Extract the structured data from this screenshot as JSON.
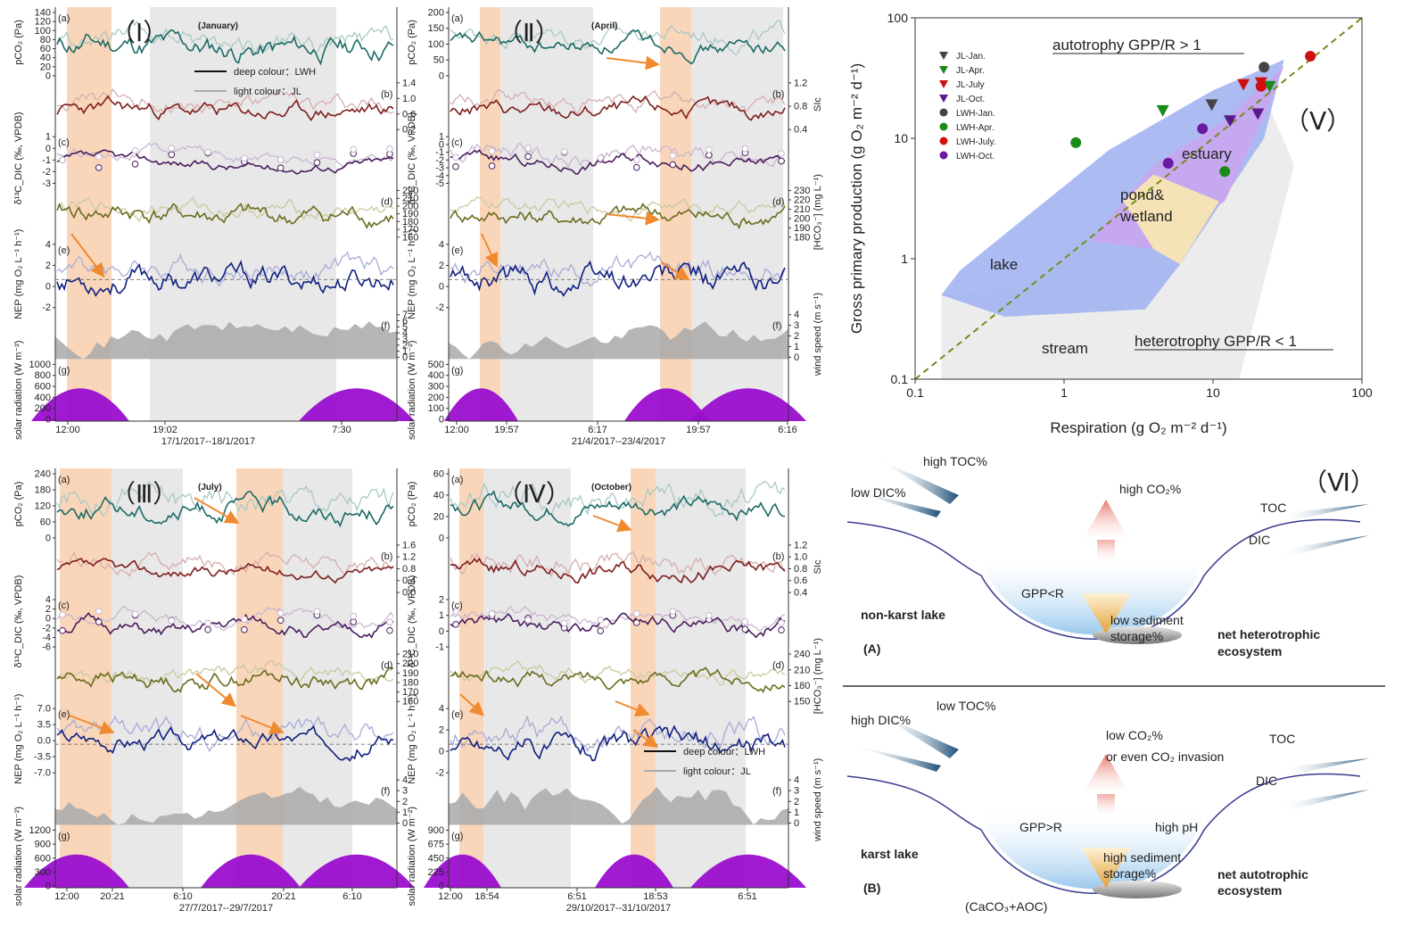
{
  "colors": {
    "day_shade": "#f8cfae",
    "night_shade": "#e8e8e8",
    "pco2_deep": "#1a6a66",
    "pco2_light": "#a9c9c4",
    "sic_deep": "#7e1d1d",
    "sic_light": "#d6aeb0",
    "d13c_deep": "#4a1e5e",
    "d13c_light": "#c9b6d0",
    "hco3_deep": "#6b6b1e",
    "hco3_light": "#c9c9a0",
    "nep_deep": "#0f1f80",
    "nep_light": "#a9abd6",
    "wind": "#a9a9a9",
    "solar": "#9a0ecf",
    "arrow": "#ef8a2f",
    "lake_region": "#a3b5f2",
    "estuary_region": "#c8a6ee",
    "pond_region": "#f5e3b7",
    "stream_region": "#ececec",
    "ratio_line": "#7a8a1a"
  },
  "panels": [
    {
      "roman": "（Ⅰ）",
      "month": "(January)",
      "date_range": "17/1/2017--18/1/2017",
      "time_ticks": [
        "12:00",
        "19:02",
        "7:30"
      ],
      "subplot_letters": [
        "(a)",
        "(b)",
        "(c)",
        "(d)",
        "(e)",
        "(f)",
        "(g)"
      ],
      "pco2_ticks": [
        "140",
        "120",
        "100",
        "80",
        "60",
        "40",
        "20",
        "0"
      ],
      "sic_ticks": [
        "1.4",
        "1.0",
        "0.6",
        "0.2"
      ],
      "d13c_ticks": [
        "1",
        "0",
        "-1",
        "-2",
        "-3"
      ],
      "hco3_ticks": [
        "220",
        "210",
        "200",
        "190",
        "180",
        "170",
        "160"
      ],
      "nep_ticks": [
        "4",
        "2",
        "0",
        "-2"
      ],
      "wind_ticks": [
        "7",
        "6",
        "5",
        "4",
        "3",
        "2",
        "1",
        "0"
      ],
      "solar_ticks": [
        "1000",
        "800",
        "600",
        "400",
        "200",
        "0"
      ],
      "legend": [
        "deep colour：LWH",
        "light colour：JL"
      ]
    },
    {
      "roman": "（Ⅱ）",
      "month": "(April)",
      "date_range": "21/4/2017--23/4/2017",
      "time_ticks": [
        "12:00",
        "19:57",
        "6:17",
        "19:57",
        "6:16"
      ],
      "subplot_letters": [
        "(a)",
        "(b)",
        "(c)",
        "(d)",
        "(e)",
        "(f)",
        "(g)"
      ],
      "pco2_ticks": [
        "200",
        "150",
        "100",
        "50",
        "0"
      ],
      "sic_ticks": [
        "1.2",
        "0.8",
        "0.4"
      ],
      "d13c_ticks": [
        "1",
        "0",
        "-1",
        "-2",
        "-3",
        "-4",
        "-5"
      ],
      "hco3_ticks": [
        "230",
        "220",
        "210",
        "200",
        "190",
        "180"
      ],
      "nep_ticks": [
        "4",
        "2",
        "0",
        "-2"
      ],
      "wind_ticks": [
        "4",
        "3",
        "2",
        "1",
        "0"
      ],
      "solar_ticks": [
        "500",
        "400",
        "300",
        "200",
        "100",
        "0"
      ]
    },
    {
      "roman": "（Ⅲ）",
      "month": "(July)",
      "date_range": "27/7/2017--29/7/2017",
      "time_ticks": [
        "12:00",
        "20:21",
        "6:10",
        "20:21",
        "6:10"
      ],
      "subplot_letters": [
        "(a)",
        "(b)",
        "(c)",
        "(d)",
        "(e)",
        "(f)",
        "(g)"
      ],
      "pco2_ticks": [
        "240",
        "180",
        "120",
        "60",
        "0"
      ],
      "sic_ticks": [
        "1.6",
        "1.2",
        "0.8",
        "0.4",
        "0.0"
      ],
      "d13c_ticks": [
        "4",
        "2",
        "0",
        "-2",
        "-4",
        "-6"
      ],
      "hco3_ticks": [
        "210",
        "200",
        "190",
        "180",
        "170",
        "160"
      ],
      "nep_ticks": [
        "7.0",
        "3.5",
        "0.0",
        "-3.5",
        "-7.0"
      ],
      "wind_ticks": [
        "4",
        "3",
        "2",
        "1",
        "0"
      ],
      "solar_ticks": [
        "1200",
        "900",
        "600",
        "300",
        "0"
      ]
    },
    {
      "roman": "（Ⅳ）",
      "month": "(October)",
      "date_range": "29/10/2017--31/10/2017",
      "time_ticks": [
        "12:00",
        "18:54",
        "6:51",
        "18:53",
        "6:51"
      ],
      "subplot_letters": [
        "(a)",
        "(b)",
        "(c)",
        "(d)",
        "(e)",
        "(f)",
        "(g)"
      ],
      "pco2_ticks": [
        "60",
        "40",
        "20",
        "0"
      ],
      "sic_ticks": [
        "1.2",
        "1.0",
        "0.8",
        "0.6",
        "0.4"
      ],
      "d13c_ticks": [
        "2",
        "1",
        "0",
        "-1"
      ],
      "hco3_ticks": [
        "240",
        "210",
        "180",
        "150"
      ],
      "nep_ticks": [
        "4",
        "2",
        "0",
        "-2"
      ],
      "wind_ticks": [
        "4",
        "3",
        "2",
        "1",
        "0"
      ],
      "solar_ticks": [
        "900",
        "675",
        "450",
        "225",
        "0"
      ],
      "legend": [
        "deep colour：LWH",
        "light colour：JL"
      ]
    }
  ],
  "axis_labels": {
    "pco2": "pCO₂ (Pa)",
    "d13c": "δ¹³C_DIC (‰, VPDB)",
    "nep": "NEP (mg O₂ L⁻¹ h⁻¹)",
    "solar": "solar radiation (W m⁻²)",
    "sic": "SIc",
    "hco3": "[HCO₃⁻] (mg L⁻¹)",
    "wind": "wind speed (m s⁻¹)"
  },
  "chart_data": {
    "type": "scatter",
    "roman": "（Ⅴ）",
    "xlabel": "Respiration (g O₂ m⁻² d⁻¹)",
    "ylabel": "Gross primary production (g O₂ m⁻² d⁻¹)",
    "x_scale": "log",
    "y_scale": "log",
    "xlim": [
      0.1,
      100
    ],
    "ylim": [
      0.1,
      100
    ],
    "x_ticks": [
      "0.1",
      "1",
      "10",
      "100"
    ],
    "y_ticks": [
      "0.1",
      "1",
      "10",
      "100"
    ],
    "legend_position": "top-left",
    "annotations": [
      "autotrophy GPP/R > 1",
      "heterotrophy GPP/R < 1"
    ],
    "region_labels": [
      "lake",
      "estuary",
      "pond&",
      "wetland",
      "stream"
    ],
    "reference_line": "GPP/R = 1",
    "series": [
      {
        "name": "JL-Jan.",
        "marker": "triangle-down",
        "color": "#444444",
        "points": [
          [
            9.8,
            19
          ]
        ]
      },
      {
        "name": "JL-Apr.",
        "marker": "triangle-down",
        "color": "#1a8a1a",
        "points": [
          [
            4.6,
            17
          ],
          [
            24,
            27
          ]
        ]
      },
      {
        "name": "JL-July",
        "marker": "triangle-down",
        "color": "#d01010",
        "points": [
          [
            16,
            28
          ],
          [
            21,
            29
          ]
        ]
      },
      {
        "name": "JL-Oct.",
        "marker": "triangle-down",
        "color": "#5a1a8a",
        "points": [
          [
            13,
            14
          ],
          [
            20,
            16
          ]
        ]
      },
      {
        "name": "LWH-Jan.",
        "marker": "circle",
        "color": "#444444",
        "points": [
          [
            22,
            39
          ]
        ]
      },
      {
        "name": "LWH-Apr.",
        "marker": "circle",
        "color": "#1a8a1a",
        "points": [
          [
            1.2,
            9.2
          ],
          [
            12,
            5.3
          ]
        ]
      },
      {
        "name": "LWH-July.",
        "marker": "circle",
        "color": "#d01010",
        "points": [
          [
            21,
            27
          ],
          [
            45,
            48
          ]
        ]
      },
      {
        "name": "LWH-Oct.",
        "marker": "circle",
        "color": "#6a1aa0",
        "points": [
          [
            5,
            6.2
          ],
          [
            8.5,
            12
          ]
        ]
      }
    ]
  },
  "diagram": {
    "roman": "（Ⅵ）",
    "non_karst": {
      "inputs": [
        "high TOC%",
        "low DIC%"
      ],
      "outflow_gas": "high CO₂%",
      "process": "GPP<R",
      "sediment": [
        "low sediment",
        "storage%"
      ],
      "lake_type": "non-karst lake",
      "ecosystem": [
        "net heterotrophic",
        "ecosystem"
      ],
      "outputs": [
        "TOC",
        "DIC"
      ],
      "letter": "(A)"
    },
    "karst": {
      "inputs": [
        "high DIC%",
        "low TOC%"
      ],
      "outflow_gas": [
        "low CO₂%",
        "or even CO₂ invasion"
      ],
      "process": "GPP>R",
      "ph": "high pH",
      "sediment": [
        "high sediment",
        "storage%"
      ],
      "lake_type": "karst lake",
      "ecosystem": [
        "net autotrophic",
        "ecosystem"
      ],
      "outputs": [
        "TOC",
        "DIC"
      ],
      "letter": "(B)",
      "sediment_note": "(CaCO₃+AOC)"
    }
  }
}
